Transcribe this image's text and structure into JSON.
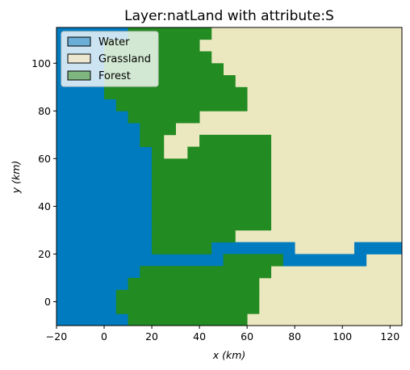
{
  "chart_data": {
    "type": "heatmap",
    "title": "Layer:natLand with attribute:S",
    "xlabel": "x (km)",
    "ylabel": "y (km)",
    "xlim": [
      -20,
      125
    ],
    "ylim": [
      -10,
      115
    ],
    "xticks": [
      -20,
      0,
      20,
      40,
      60,
      80,
      100,
      120
    ],
    "yticks": [
      0,
      20,
      40,
      60,
      80,
      100
    ],
    "grid": false,
    "legend_placement": "top-left",
    "legend": [
      {
        "name": "Water",
        "swatch": "#6baed6"
      },
      {
        "name": "Grassland",
        "swatch": "#ebe8cf"
      },
      {
        "name": "Forest",
        "swatch": "#7fb67f"
      }
    ],
    "colors": {
      "Water": "#007bbf",
      "Grassland": "#ebe8c0",
      "Forest": "#228b22"
    },
    "background_class": "Grassland",
    "regions": [
      {
        "class": "Water",
        "x": [
          -20,
          0
        ],
        "y": [
          -10,
          115
        ]
      },
      {
        "class": "Water",
        "x": [
          0,
          20
        ],
        "y": [
          -10,
          115
        ]
      },
      {
        "class": "Water",
        "x": [
          20,
          50
        ],
        "y": [
          15,
          20
        ]
      },
      {
        "class": "Water",
        "x": [
          45,
          80
        ],
        "y": [
          20,
          25
        ]
      },
      {
        "class": "Water",
        "x": [
          75,
          110
        ],
        "y": [
          15,
          20
        ]
      },
      {
        "class": "Water",
        "x": [
          105,
          125
        ],
        "y": [
          20,
          25
        ]
      },
      {
        "class": "Forest",
        "x": [
          10,
          45
        ],
        "y": [
          110,
          115
        ]
      },
      {
        "class": "Forest",
        "x": [
          0,
          40
        ],
        "y": [
          105,
          110
        ]
      },
      {
        "class": "Forest",
        "x": [
          0,
          45
        ],
        "y": [
          100,
          105
        ]
      },
      {
        "class": "Forest",
        "x": [
          0,
          50
        ],
        "y": [
          95,
          100
        ]
      },
      {
        "class": "Forest",
        "x": [
          0,
          55
        ],
        "y": [
          90,
          95
        ]
      },
      {
        "class": "Forest",
        "x": [
          0,
          60
        ],
        "y": [
          85,
          90
        ]
      },
      {
        "class": "Forest",
        "x": [
          5,
          60
        ],
        "y": [
          80,
          85
        ]
      },
      {
        "class": "Forest",
        "x": [
          10,
          40
        ],
        "y": [
          75,
          80
        ]
      },
      {
        "class": "Forest",
        "x": [
          15,
          30
        ],
        "y": [
          70,
          75
        ]
      },
      {
        "class": "Forest",
        "x": [
          15,
          25
        ],
        "y": [
          65,
          70
        ]
      },
      {
        "class": "Forest",
        "x": [
          40,
          70
        ],
        "y": [
          65,
          70
        ]
      },
      {
        "class": "Forest",
        "x": [
          20,
          25
        ],
        "y": [
          60,
          65
        ]
      },
      {
        "class": "Forest",
        "x": [
          35,
          70
        ],
        "y": [
          60,
          65
        ]
      },
      {
        "class": "Forest",
        "x": [
          20,
          70
        ],
        "y": [
          55,
          60
        ]
      },
      {
        "class": "Forest",
        "x": [
          20,
          70
        ],
        "y": [
          30,
          55
        ]
      },
      {
        "class": "Forest",
        "x": [
          20,
          55
        ],
        "y": [
          25,
          30
        ]
      },
      {
        "class": "Forest",
        "x": [
          20,
          45
        ],
        "y": [
          20,
          25
        ]
      },
      {
        "class": "Forest",
        "x": [
          50,
          75
        ],
        "y": [
          15,
          20
        ]
      },
      {
        "class": "Forest",
        "x": [
          15,
          70
        ],
        "y": [
          10,
          15
        ]
      },
      {
        "class": "Forest",
        "x": [
          10,
          65
        ],
        "y": [
          5,
          10
        ]
      },
      {
        "class": "Forest",
        "x": [
          5,
          65
        ],
        "y": [
          -5,
          5
        ]
      },
      {
        "class": "Forest",
        "x": [
          10,
          60
        ],
        "y": [
          -10,
          -5
        ]
      },
      {
        "class": "Forest",
        "x": [
          5,
          60
        ],
        "y": [
          -5,
          -4.99
        ]
      }
    ]
  }
}
